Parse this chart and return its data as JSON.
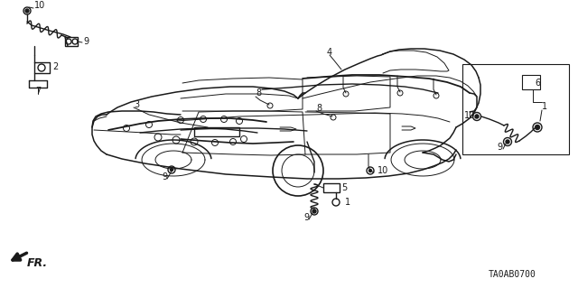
{
  "background_color": "#ffffff",
  "diagram_code": "TA0AB0700",
  "fr_label": "FR.",
  "fig_width": 6.4,
  "fig_height": 3.19,
  "dpi": 100,
  "line_color": "#1a1a1a",
  "lw_body": 1.1,
  "lw_detail": 0.9,
  "lw_thin": 0.7
}
